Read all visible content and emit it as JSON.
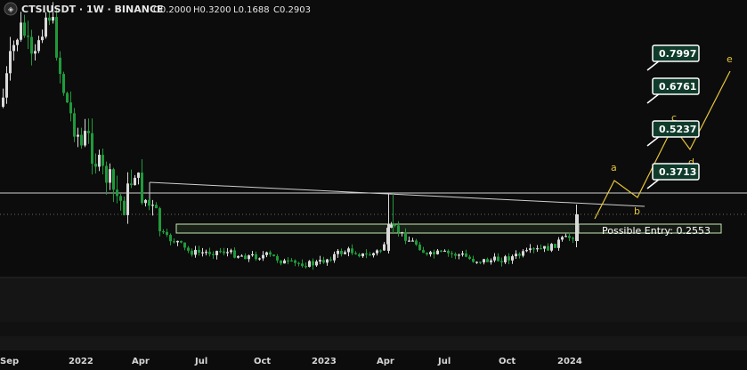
{
  "header": {
    "symbol": "CTSIUSDT",
    "interval": "1W",
    "exchange": "BINANCE",
    "title": "CTSIUSDT · 1W · BINANCE",
    "ohlc": [
      {
        "key": "O",
        "value": "0.2000"
      },
      {
        "key": "H",
        "value": "0.3200"
      },
      {
        "key": "L",
        "value": "0.1688"
      },
      {
        "key": "C",
        "value": "0.2903"
      }
    ]
  },
  "colors": {
    "background": "#0c0c0c",
    "up": "#d9d9d9",
    "down": "#1f9a3a",
    "zone_border": "#c8e8b4",
    "wave": "#e7c63b",
    "label_bg": "#0f3b2b",
    "resistance": "#d0d0d0",
    "trendline": "#cfcfcf"
  },
  "chart_data": {
    "type": "candlestick",
    "time_axis_labels": [
      "Sep",
      "2022",
      "Apr",
      "Jul",
      "Oct",
      "2023",
      "Apr",
      "Jul",
      "Oct",
      "2024"
    ],
    "price_range": [
      0.0,
      0.85
    ],
    "targets": [
      {
        "label": "0.7997",
        "value": 0.7997
      },
      {
        "label": "0.6761",
        "value": 0.6761
      },
      {
        "label": "0.5237",
        "value": 0.5237
      },
      {
        "label": "0.3713",
        "value": 0.3713
      }
    ],
    "entry": {
      "label": "Possible Entry: 0.2553",
      "value": 0.2553
    },
    "resistance_level": 0.335,
    "dotted_level": 0.29,
    "wave_labels": [
      "a",
      "b",
      "c",
      "d",
      "e"
    ],
    "last_candle": {
      "open": 0.2,
      "high": 0.32,
      "low": 0.1688,
      "close": 0.2903
    }
  }
}
